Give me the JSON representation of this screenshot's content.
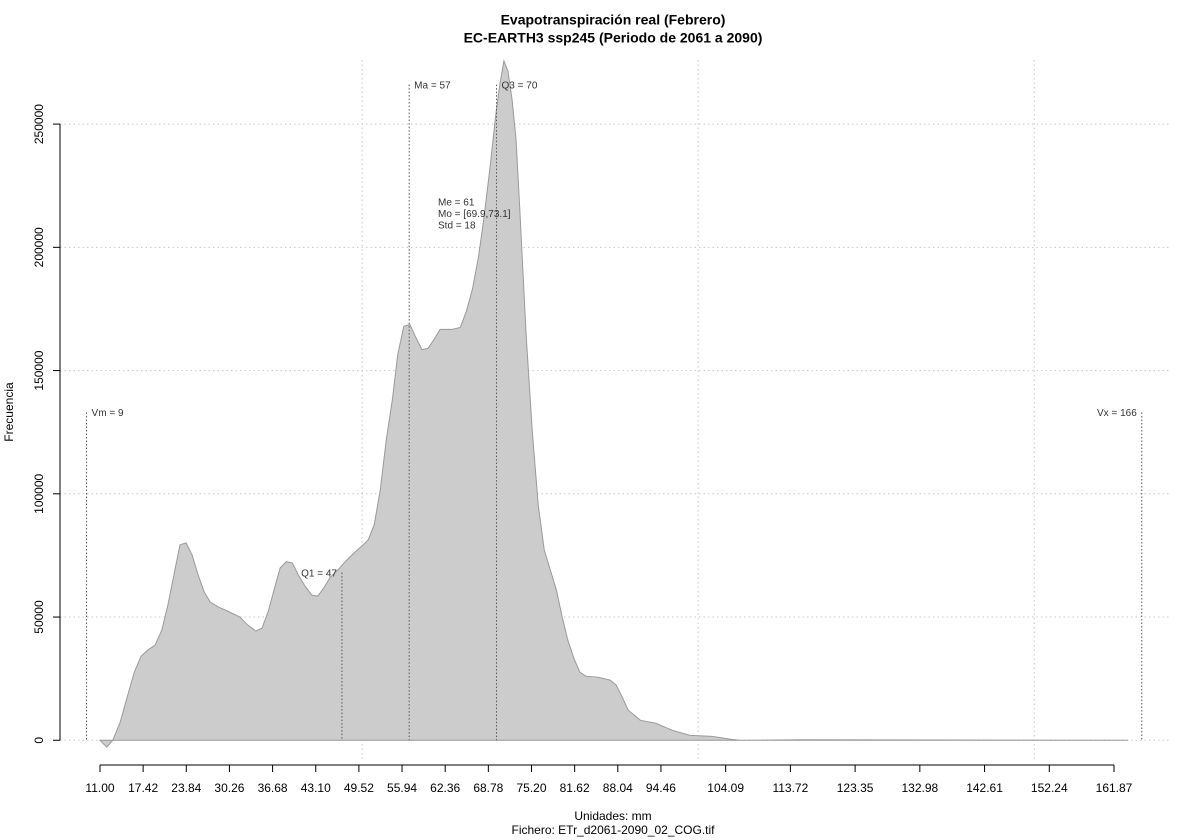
{
  "chart_data": {
    "type": "area",
    "title": "Evapotranspiración real (Febrero)",
    "subtitle": "EC-EARTH3 ssp245 (Periodo de 2061 a 2090)",
    "x_label": "Unidades: mm",
    "y_label": "Frecuencia",
    "footer": "Fichero: ETr_d2061-2090_02_COG.tif",
    "color": "#cccccc",
    "line_color": "#9a9a9a",
    "grid": true,
    "xlim": [
      5.05,
      170.2
    ],
    "ylim": [
      -8000,
      276000
    ],
    "xticks": [
      {
        "value": 11.0,
        "label": "11.00"
      },
      17.42,
      23.84,
      30.26,
      36.68,
      {
        "value": 43.1,
        "label": "43.10"
      },
      49.52,
      55.94,
      62.36,
      68.78,
      {
        "value": 75.2,
        "label": "75.20"
      },
      81.62,
      88.04,
      94.46,
      104.09,
      113.72,
      123.35,
      132.98,
      142.61,
      152.24,
      161.87
    ],
    "xgrid": [
      50,
      100,
      150
    ],
    "yticks": [
      0,
      50000,
      100000,
      150000,
      200000,
      250000
    ],
    "x": [
      11.0,
      12.0,
      12.9,
      14.0,
      15.0,
      16.1,
      17.1,
      18.1,
      19.2,
      20.2,
      21.1,
      22.0,
      22.9,
      23.8,
      24.7,
      25.6,
      26.5,
      27.4,
      28.6,
      30.0,
      31.8,
      33.0,
      34.2,
      35.1,
      36.0,
      36.9,
      37.8,
      38.7,
      39.6,
      40.5,
      41.4,
      42.5,
      43.4,
      44.3,
      45.2,
      46.4,
      47.6,
      48.8,
      50.0,
      50.9,
      51.8,
      52.7,
      53.6,
      54.5,
      55.3,
      56.2,
      57.1,
      58.0,
      58.9,
      59.8,
      60.7,
      61.6,
      63.4,
      64.6,
      65.5,
      66.4,
      67.3,
      68.1,
      69.0,
      69.9,
      70.5,
      71.1,
      71.7,
      72.3,
      72.9,
      73.5,
      74.4,
      75.3,
      76.2,
      77.1,
      78.0,
      78.9,
      79.8,
      80.6,
      81.5,
      82.4,
      83.3,
      85.1,
      86.9,
      87.8,
      88.7,
      89.6,
      90.5,
      91.4,
      93.7,
      96.1,
      98.8,
      102.1,
      104.8,
      106.2,
      115.2,
      164.0
    ],
    "y": [
      0,
      -2800,
      0,
      7300,
      17100,
      27600,
      34100,
      36600,
      38600,
      44700,
      54900,
      67100,
      79300,
      80100,
      75200,
      67100,
      60200,
      56100,
      54100,
      52400,
      50000,
      46700,
      44300,
      45500,
      52000,
      61000,
      69900,
      72400,
      72000,
      67100,
      63000,
      58900,
      58500,
      61800,
      65900,
      69100,
      72800,
      76000,
      78900,
      81300,
      87400,
      101600,
      122000,
      138200,
      156500,
      167900,
      168700,
      163400,
      158500,
      159000,
      162600,
      166700,
      166700,
      167500,
      174000,
      182900,
      195900,
      211400,
      231700,
      254100,
      266300,
      275600,
      271500,
      260200,
      243900,
      213400,
      164600,
      126000,
      95500,
      77200,
      69100,
      61000,
      49600,
      40700,
      33300,
      27600,
      26000,
      25600,
      24400,
      22400,
      17500,
      12200,
      10200,
      8100,
      6900,
      4100,
      2000,
      1600,
      400,
      0,
      200,
      0
    ],
    "annotations": [
      {
        "label": "Vm = 9",
        "x": 9,
        "y": 133000
      },
      {
        "label": "Q1 = 47",
        "x": 47,
        "y": 68000
      },
      {
        "label": "Ma = 57",
        "x": 57,
        "y": 266000
      },
      {
        "label": "Q3 = 70",
        "x": 70,
        "y": 266000
      },
      {
        "label": "Vx = 166",
        "x": 166,
        "y": 133000
      }
    ],
    "stats": [
      "Me = 61",
      "Mo = [69.9,73.1]",
      "Std = 18"
    ]
  }
}
